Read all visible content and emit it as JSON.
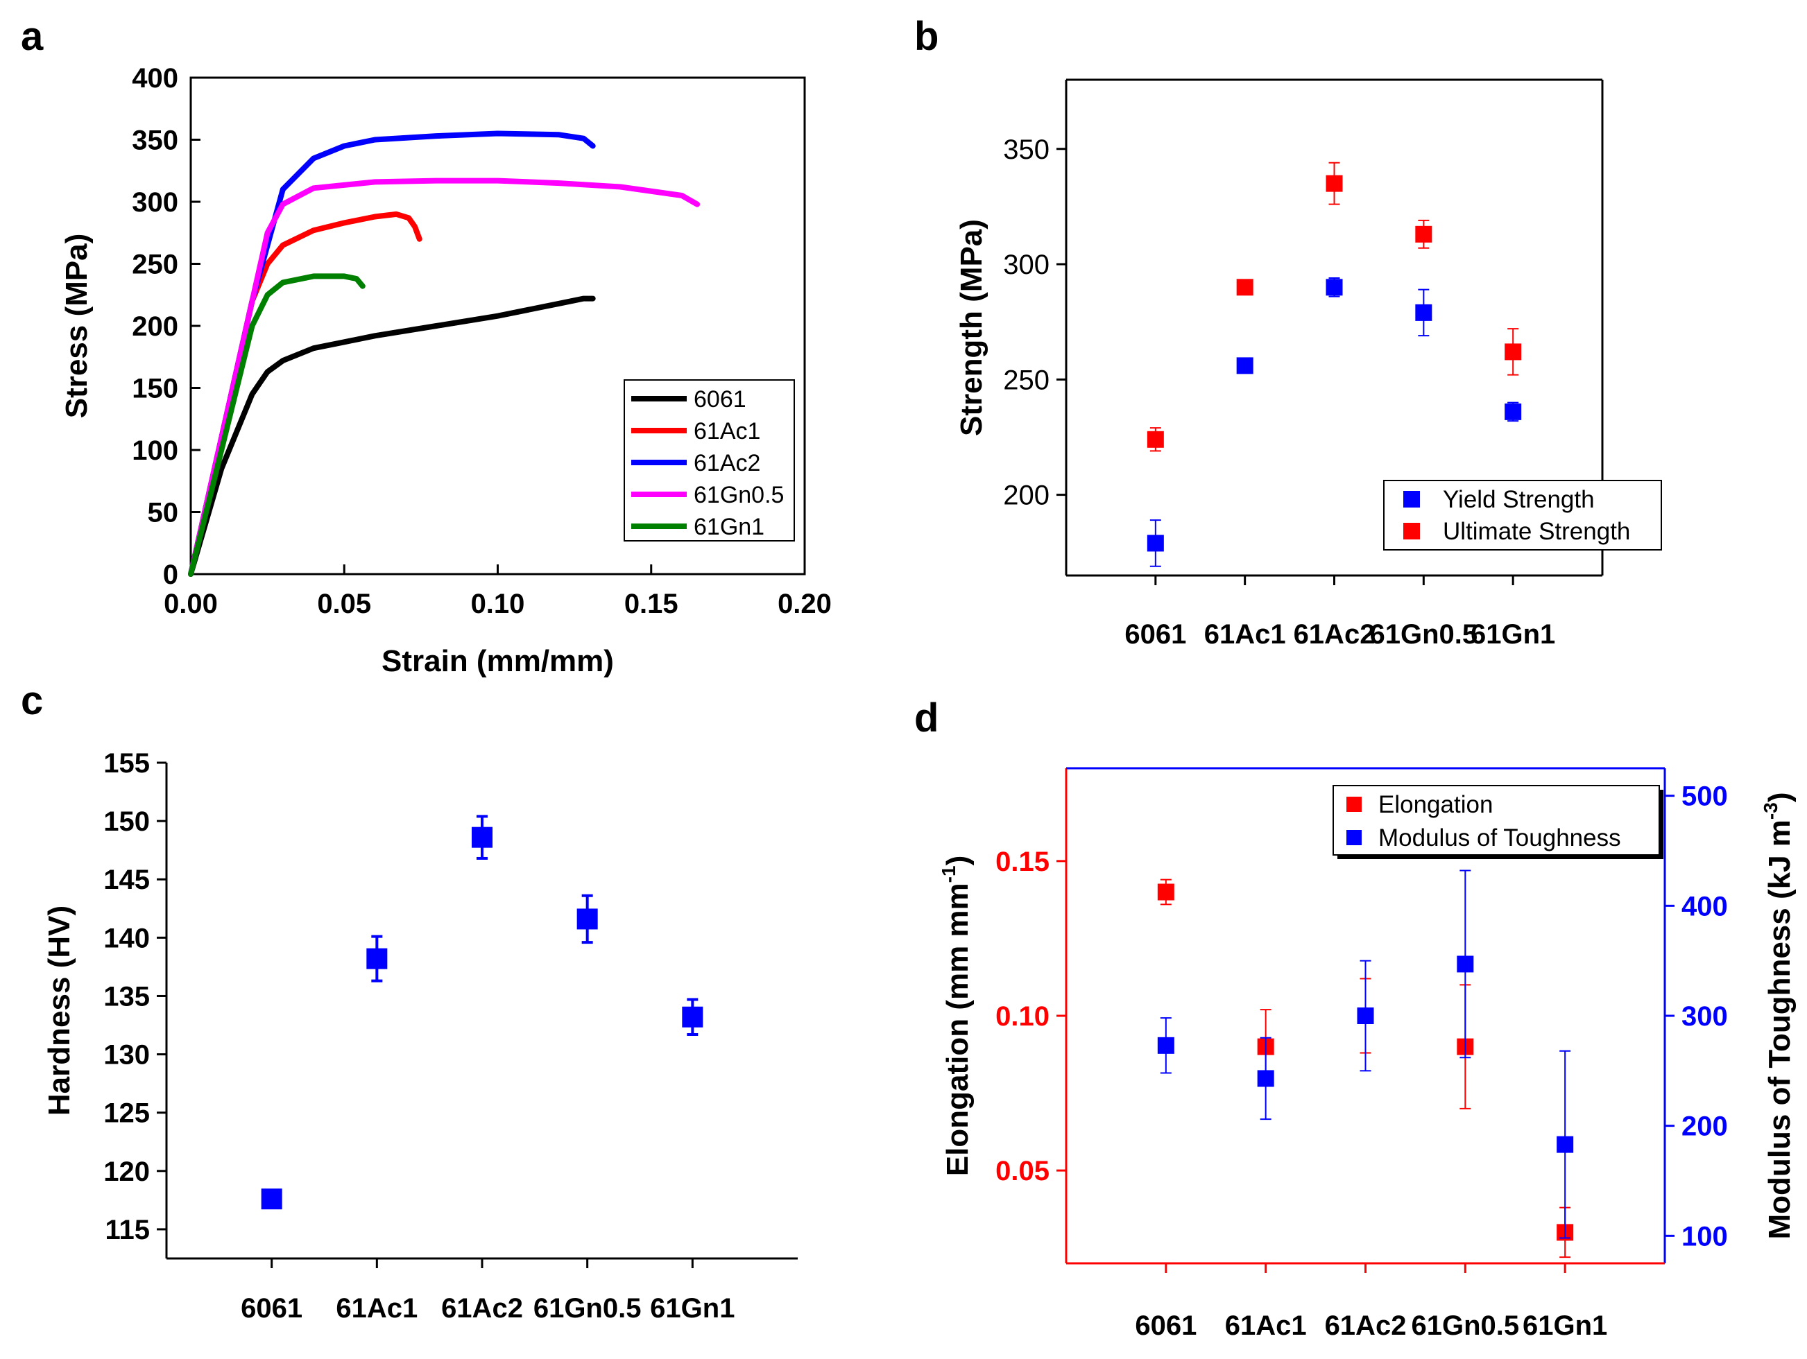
{
  "colors": {
    "black": "#000000",
    "red": "#ff0000",
    "blue": "#0000ff",
    "magenta": "#ff00ff",
    "green": "#008000"
  },
  "chart_data": [
    {
      "panel": "a",
      "type": "line",
      "xlabel": "Strain (mm/mm)",
      "ylabel": "Stress (MPa)",
      "xlim": [
        0,
        0.2
      ],
      "ylim": [
        0,
        400
      ],
      "xticks": [
        "0.00",
        "0.05",
        "0.10",
        "0.15",
        "0.20"
      ],
      "yticks": [
        "0",
        "50",
        "100",
        "150",
        "200",
        "250",
        "300",
        "350",
        "400"
      ],
      "legend_position": "bottom-right",
      "series": [
        {
          "name": "6061",
          "color": "#000000",
          "x": [
            0,
            0.01,
            0.02,
            0.025,
            0.03,
            0.04,
            0.05,
            0.06,
            0.08,
            0.1,
            0.12,
            0.128,
            0.131
          ],
          "y": [
            0,
            85,
            145,
            163,
            172,
            182,
            187,
            192,
            200,
            208,
            218,
            222,
            222
          ]
        },
        {
          "name": "61Ac1",
          "color": "#ff0000",
          "x": [
            0,
            0.01,
            0.02,
            0.025,
            0.03,
            0.04,
            0.05,
            0.06,
            0.067,
            0.071,
            0.073,
            0.0745
          ],
          "y": [
            0,
            110,
            220,
            250,
            265,
            277,
            283,
            288,
            290,
            287,
            280,
            270
          ]
        },
        {
          "name": "61Ac2",
          "color": "#0000ff",
          "x": [
            0,
            0.01,
            0.02,
            0.03,
            0.04,
            0.05,
            0.06,
            0.08,
            0.1,
            0.12,
            0.128,
            0.131
          ],
          "y": [
            0,
            110,
            220,
            310,
            335,
            345,
            350,
            353,
            355,
            354,
            351,
            345
          ]
        },
        {
          "name": "61Gn0.5",
          "color": "#ff00ff",
          "x": [
            0,
            0.01,
            0.02,
            0.025,
            0.03,
            0.04,
            0.06,
            0.08,
            0.1,
            0.12,
            0.14,
            0.16,
            0.165
          ],
          "y": [
            0,
            110,
            220,
            275,
            298,
            311,
            316,
            317,
            317,
            315,
            312,
            305,
            298
          ]
        },
        {
          "name": "61Gn1",
          "color": "#008000",
          "x": [
            0,
            0.01,
            0.02,
            0.025,
            0.03,
            0.04,
            0.05,
            0.054,
            0.056
          ],
          "y": [
            0,
            100,
            200,
            225,
            235,
            240,
            240,
            238,
            232
          ]
        }
      ]
    },
    {
      "panel": "b",
      "type": "scatter",
      "xlabel": "",
      "ylabel": "Strength (MPa)",
      "ylim": [
        165,
        380
      ],
      "categories": [
        "6061",
        "61Ac1",
        "61Ac2",
        "61Gn0.5",
        "61Gn1"
      ],
      "yticks": [
        "200",
        "250",
        "300",
        "350"
      ],
      "legend_position": "bottom-right",
      "series": [
        {
          "name": "Yield Strength",
          "color": "#0000ff",
          "values": [
            179,
            256,
            290,
            279,
            236
          ],
          "errors": [
            10,
            0,
            4,
            10,
            4
          ]
        },
        {
          "name": "Ultimate Strength",
          "color": "#ff0000",
          "values": [
            224,
            290,
            335,
            313,
            262
          ],
          "errors": [
            5,
            0,
            9,
            6,
            10
          ]
        }
      ]
    },
    {
      "panel": "c",
      "type": "scatter",
      "xlabel": "",
      "ylabel": "Hardness (HV)",
      "ylim": [
        112.5,
        155
      ],
      "categories": [
        "6061",
        "61Ac1",
        "61Ac2",
        "61Gn0.5",
        "61Gn1"
      ],
      "yticks": [
        "115",
        "120",
        "125",
        "130",
        "135",
        "140",
        "145",
        "150",
        "155"
      ],
      "series": [
        {
          "name": "Hardness",
          "color": "#0000ff",
          "values": [
            117.6,
            138.2,
            148.6,
            141.6,
            133.2
          ],
          "errors": [
            0.5,
            1.9,
            1.8,
            2.0,
            1.5
          ]
        }
      ]
    },
    {
      "panel": "d",
      "type": "scatter",
      "xlabel": "",
      "ylabel": "Elongation (mm mm",
      "ylabel_sup": "-1",
      "ylabel_end": ")",
      "y2label": "Modulus of Toughness (kJ m",
      "y2label_sup": "-3",
      "y2label_end": ")",
      "ylim": [
        0.02,
        0.18
      ],
      "y2lim": [
        75,
        525
      ],
      "categories": [
        "6061",
        "61Ac1",
        "61Ac2",
        "61Gn0.5",
        "61Gn1"
      ],
      "yticks": [
        "0.05",
        "0.10",
        "0.15"
      ],
      "y2ticks": [
        "100",
        "200",
        "300",
        "400",
        "500"
      ],
      "legend_position": "top-right",
      "series": [
        {
          "name": "Elongation",
          "axis": "left",
          "color": "#ff0000",
          "values": [
            0.14,
            0.09,
            0.1,
            0.09,
            0.03
          ],
          "errors": [
            0.004,
            0.012,
            0.012,
            0.02,
            0.008
          ]
        },
        {
          "name": "Modulus of Toughness",
          "axis": "right",
          "color": "#0000ff",
          "values": [
            273,
            243,
            300,
            347,
            183
          ],
          "errors": [
            25,
            37,
            50,
            85,
            85
          ]
        }
      ]
    }
  ]
}
